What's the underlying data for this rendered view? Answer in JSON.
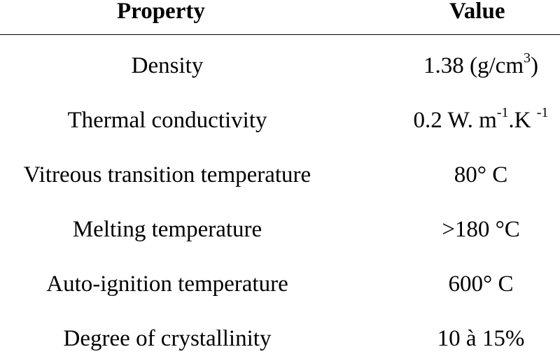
{
  "table": {
    "headers": {
      "property": "Property",
      "value": "Value"
    },
    "rows": [
      {
        "property": "Density",
        "value_parts": [
          "1.38 (g/cm",
          "3",
          ")"
        ]
      },
      {
        "property": "Thermal conductivity",
        "value_parts": [
          "0.2 W. m",
          "-1",
          ".K ",
          "-1"
        ]
      },
      {
        "property": "Vitreous transition temperature",
        "value": "80° C"
      },
      {
        "property": "Melting temperature",
        "value": ">180 °C"
      },
      {
        "property": "Auto-ignition temperature",
        "value": "600° C"
      },
      {
        "property": "Degree of crystallinity",
        "value": "10 à 15%"
      }
    ]
  }
}
